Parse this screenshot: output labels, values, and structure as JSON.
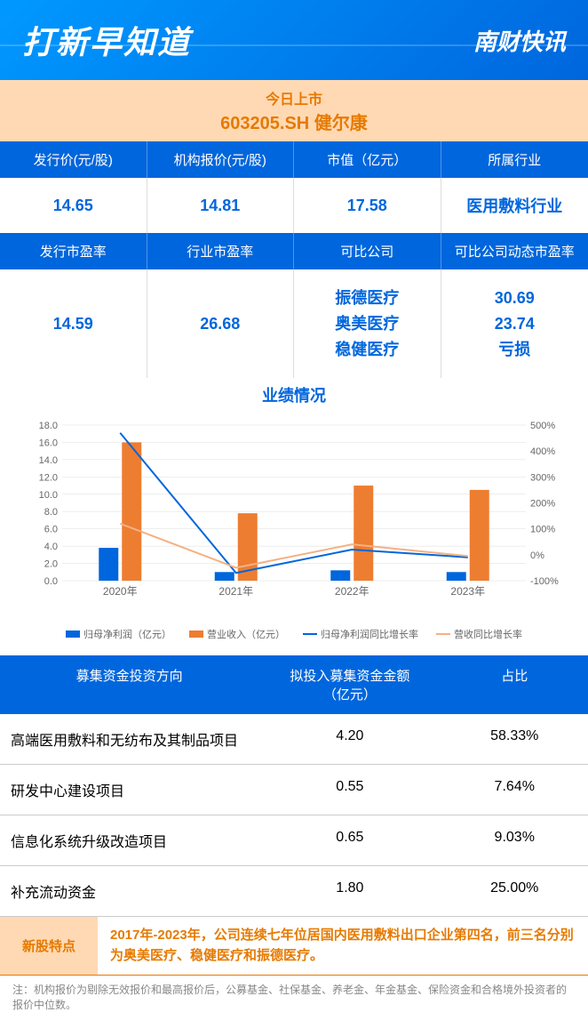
{
  "header": {
    "title": "打新早知道",
    "brand": "南财快讯"
  },
  "listing": {
    "label": "今日上市",
    "code": "603205.SH  健尔康"
  },
  "metrics1": {
    "headers": [
      "发行价(元/股)",
      "机构报价(元/股)",
      "市值（亿元）",
      "所属行业"
    ],
    "values": [
      "14.65",
      "14.81",
      "17.58",
      "医用敷料行业"
    ]
  },
  "metrics2": {
    "headers": [
      "发行市盈率",
      "行业市盈率",
      "可比公司",
      "可比公司动态市盈率"
    ],
    "values_simple": [
      "14.59",
      "26.68"
    ],
    "companies": [
      "振德医疗",
      "奥美医疗",
      "稳健医疗"
    ],
    "company_pes": [
      "30.69",
      "23.74",
      "亏损"
    ]
  },
  "chart": {
    "title": "业绩情况",
    "categories": [
      "2020年",
      "2021年",
      "2022年",
      "2023年"
    ],
    "left_axis": {
      "min": 0,
      "max": 18,
      "step": 2
    },
    "right_axis": {
      "ticks": [
        500,
        400,
        300,
        200,
        100,
        0,
        -100
      ],
      "unit": "%"
    },
    "bar1": {
      "name": "归母净利润（亿元）",
      "color": "#0066dd",
      "values": [
        3.8,
        1.0,
        1.2,
        1.0
      ]
    },
    "bar2": {
      "name": "营业收入（亿元）",
      "color": "#ed7d31",
      "values": [
        16.0,
        7.8,
        11.0,
        10.5
      ]
    },
    "line1": {
      "name": "归母净利润同比增长率",
      "color": "#0066dd",
      "values": [
        470,
        -70,
        20,
        -10
      ]
    },
    "line2": {
      "name": "营收同比增长率",
      "color": "#f4b183",
      "values": [
        120,
        -50,
        40,
        -5
      ]
    }
  },
  "invest": {
    "headers": [
      "募集资金投资方向",
      "拟投入募集资金金额\n（亿元）",
      "占比"
    ],
    "rows": [
      {
        "dir": "高端医用敷料和无纺布及其制品项目",
        "amt": "4.20",
        "pct": "58.33%"
      },
      {
        "dir": "研发中心建设项目",
        "amt": "0.55",
        "pct": "7.64%"
      },
      {
        "dir": "信息化系统升级改造项目",
        "amt": "0.65",
        "pct": "9.03%"
      },
      {
        "dir": "补充流动资金",
        "amt": "1.80",
        "pct": "25.00%"
      }
    ]
  },
  "feature": {
    "label": "新股特点",
    "text": "2017年-2023年，公司连续七年位居国内医用敷料出口企业第四名，前三名分别为奥美医疗、稳健医疗和振德医疗。"
  },
  "footnote": "注：机构报价为剔除无效报价和最高报价后，公募基金、社保基金、养老金、年金基金、保险资金和合格境外投资者的报价中位数。"
}
